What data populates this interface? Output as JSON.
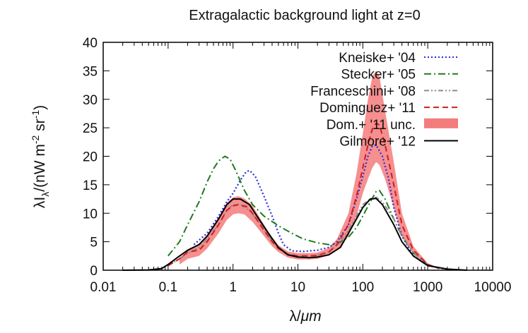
{
  "chart_data": {
    "type": "line",
    "title": "Extragalactic background light at z=0",
    "xlabel": {
      "prefix": "λ/",
      "unit": "μm"
    },
    "ylabel": {
      "base": "λI",
      "sub": "λ",
      "units_open": "/(nW m",
      "exp1": "-2",
      "mid": " sr",
      "exp2": "-1",
      "close": ")"
    },
    "xscale": "log",
    "xlim": [
      0.01,
      10000
    ],
    "ylim": [
      0,
      40
    ],
    "x_ticks": [
      0.01,
      0.1,
      1,
      10,
      100,
      1000,
      10000
    ],
    "x_tick_labels": [
      "0.01",
      "0.1",
      "1",
      "10",
      "100",
      "1000",
      "10000"
    ],
    "y_ticks": [
      0,
      5,
      10,
      15,
      20,
      25,
      30,
      35,
      40
    ],
    "y_tick_labels": [
      "0",
      "5",
      "10",
      "15",
      "20",
      "25",
      "30",
      "35",
      "40"
    ],
    "legend_position": "top-right",
    "series": [
      {
        "name": "Kneiske+ '04",
        "color": "#2b2bdd",
        "style": "dotted",
        "points": [
          [
            0.25,
            4.5
          ],
          [
            0.4,
            6.5
          ],
          [
            0.6,
            9.5
          ],
          [
            0.8,
            12
          ],
          [
            1,
            13.5
          ],
          [
            1.3,
            15.8
          ],
          [
            1.6,
            17.3
          ],
          [
            1.8,
            17.5
          ],
          [
            2.2,
            16.5
          ],
          [
            3,
            13
          ],
          [
            4,
            9.5
          ],
          [
            5,
            6.5
          ],
          [
            6,
            4.5
          ],
          [
            8,
            3.4
          ],
          [
            12,
            3.3
          ],
          [
            20,
            3.5
          ],
          [
            30,
            4
          ],
          [
            40,
            5
          ],
          [
            60,
            8
          ],
          [
            80,
            12.5
          ],
          [
            100,
            16.5
          ],
          [
            120,
            20
          ],
          [
            140,
            21.8
          ],
          [
            160,
            22
          ],
          [
            200,
            20
          ],
          [
            250,
            16
          ],
          [
            300,
            11
          ],
          [
            400,
            6
          ],
          [
            600,
            2.5
          ],
          [
            1000,
            0.8
          ],
          [
            2000,
            0.15
          ]
        ]
      },
      {
        "name": "Stecker+ '05",
        "color": "#1f7a1f",
        "style": "dash-dot",
        "points": [
          [
            0.1,
            2.5
          ],
          [
            0.15,
            5
          ],
          [
            0.2,
            8
          ],
          [
            0.3,
            12
          ],
          [
            0.4,
            15.5
          ],
          [
            0.5,
            17.8
          ],
          [
            0.6,
            19.2
          ],
          [
            0.75,
            20
          ],
          [
            0.9,
            19.5
          ],
          [
            1.1,
            17.5
          ],
          [
            1.5,
            14
          ],
          [
            2,
            11.5
          ],
          [
            3,
            9.5
          ],
          [
            5,
            7.8
          ],
          [
            8,
            6.5
          ],
          [
            12,
            5.5
          ],
          [
            20,
            4.8
          ],
          [
            30,
            4.5
          ],
          [
            40,
            4.6
          ],
          [
            60,
            5.8
          ],
          [
            80,
            7.5
          ],
          [
            100,
            9.5
          ],
          [
            130,
            12
          ],
          [
            160,
            13.8
          ],
          [
            180,
            14
          ],
          [
            220,
            12.5
          ],
          [
            300,
            9
          ],
          [
            400,
            6
          ],
          [
            600,
            3
          ],
          [
            1000,
            1
          ],
          [
            1500,
            0.3
          ]
        ]
      },
      {
        "name": "Franceschini+ '08",
        "color": "#8c8c8c",
        "style": "dash-dot-dot",
        "points": [
          [
            0.1,
            0.8
          ],
          [
            0.15,
            2
          ],
          [
            0.2,
            3
          ],
          [
            0.3,
            4
          ],
          [
            0.4,
            5.5
          ],
          [
            0.6,
            8
          ],
          [
            0.8,
            10.5
          ],
          [
            1,
            11.5
          ],
          [
            1.3,
            11.5
          ],
          [
            1.8,
            10.5
          ],
          [
            2.5,
            8.5
          ],
          [
            3.5,
            6
          ],
          [
            5,
            3.8
          ],
          [
            7,
            2.8
          ],
          [
            10,
            2.5
          ],
          [
            15,
            2.5
          ],
          [
            20,
            2.6
          ],
          [
            30,
            3.2
          ],
          [
            45,
            5
          ],
          [
            60,
            7
          ],
          [
            80,
            9.5
          ],
          [
            100,
            11.5
          ],
          [
            130,
            12.5
          ],
          [
            160,
            12.8
          ],
          [
            200,
            12
          ],
          [
            300,
            9
          ],
          [
            400,
            6
          ],
          [
            600,
            3
          ],
          [
            1000,
            1
          ],
          [
            1500,
            0.3
          ]
        ]
      },
      {
        "name": "Dominguez+ '11",
        "color": "#cc1f1f",
        "style": "dashed",
        "points": [
          [
            0.1,
            0.8
          ],
          [
            0.15,
            2
          ],
          [
            0.2,
            3.2
          ],
          [
            0.3,
            3.5
          ],
          [
            0.4,
            5
          ],
          [
            0.6,
            8
          ],
          [
            0.8,
            10.5
          ],
          [
            1,
            11.3
          ],
          [
            1.2,
            11.5
          ],
          [
            1.6,
            11.2
          ],
          [
            2,
            10
          ],
          [
            3,
            7
          ],
          [
            4,
            5
          ],
          [
            5,
            3.8
          ],
          [
            7,
            2.8
          ],
          [
            10,
            2.5
          ],
          [
            15,
            2.5
          ],
          [
            20,
            2.6
          ],
          [
            30,
            3.2
          ],
          [
            40,
            4.5
          ],
          [
            60,
            8
          ],
          [
            80,
            13
          ],
          [
            100,
            18
          ],
          [
            120,
            22
          ],
          [
            140,
            24.8
          ],
          [
            160,
            25.8
          ],
          [
            180,
            25.5
          ],
          [
            220,
            22
          ],
          [
            300,
            15
          ],
          [
            400,
            8
          ],
          [
            600,
            3.5
          ],
          [
            1000,
            1
          ],
          [
            1500,
            0.3
          ]
        ]
      },
      {
        "name": "Gilmore+ '12",
        "color": "#000000",
        "style": "solid",
        "points": [
          [
            0.02,
            0
          ],
          [
            0.05,
            0.05
          ],
          [
            0.08,
            0.3
          ],
          [
            0.1,
            1
          ],
          [
            0.15,
            2.5
          ],
          [
            0.2,
            3.5
          ],
          [
            0.3,
            4.5
          ],
          [
            0.4,
            6
          ],
          [
            0.6,
            9
          ],
          [
            0.8,
            11.5
          ],
          [
            1,
            12.5
          ],
          [
            1.3,
            12.5
          ],
          [
            1.8,
            11.5
          ],
          [
            2.5,
            9
          ],
          [
            3.5,
            6.5
          ],
          [
            5,
            4
          ],
          [
            7,
            2.7
          ],
          [
            10,
            2.3
          ],
          [
            15,
            2.2
          ],
          [
            20,
            2.3
          ],
          [
            30,
            2.7
          ],
          [
            45,
            4
          ],
          [
            60,
            6.5
          ],
          [
            80,
            9
          ],
          [
            100,
            11
          ],
          [
            130,
            12.5
          ],
          [
            160,
            12.6
          ],
          [
            200,
            11.5
          ],
          [
            300,
            8
          ],
          [
            400,
            5
          ],
          [
            600,
            2.5
          ],
          [
            1000,
            0.8
          ],
          [
            2000,
            0.2
          ],
          [
            4000,
            0
          ]
        ]
      }
    ],
    "band": {
      "name": "Dom.+ '11 unc.",
      "color": "#f47b7b",
      "lower": [
        [
          0.15,
          1
        ],
        [
          0.2,
          2
        ],
        [
          0.3,
          2.5
        ],
        [
          0.4,
          3.8
        ],
        [
          0.6,
          6.5
        ],
        [
          0.8,
          8.8
        ],
        [
          1,
          9.8
        ],
        [
          1.2,
          10
        ],
        [
          1.5,
          9.8
        ],
        [
          2,
          8.5
        ],
        [
          3,
          6
        ],
        [
          4,
          4.2
        ],
        [
          5,
          3.2
        ],
        [
          7,
          2.2
        ],
        [
          10,
          1.9
        ],
        [
          15,
          1.9
        ],
        [
          20,
          2
        ],
        [
          30,
          2.6
        ],
        [
          40,
          3.5
        ],
        [
          60,
          6
        ],
        [
          80,
          9.5
        ],
        [
          100,
          13.5
        ],
        [
          120,
          16
        ],
        [
          140,
          18
        ],
        [
          160,
          19
        ],
        [
          180,
          18.5
        ],
        [
          220,
          16
        ],
        [
          300,
          11
        ],
        [
          400,
          6
        ],
        [
          600,
          2.8
        ],
        [
          1000,
          0.8
        ],
        [
          1500,
          0.2
        ]
      ],
      "upper": [
        [
          0.15,
          2.2
        ],
        [
          0.2,
          3.4
        ],
        [
          0.3,
          4.3
        ],
        [
          0.4,
          6.2
        ],
        [
          0.6,
          9.3
        ],
        [
          0.8,
          11.8
        ],
        [
          1,
          12.8
        ],
        [
          1.2,
          13
        ],
        [
          1.5,
          12.6
        ],
        [
          2,
          11.3
        ],
        [
          3,
          8
        ],
        [
          4,
          5.8
        ],
        [
          5,
          4.4
        ],
        [
          7,
          3.3
        ],
        [
          10,
          3
        ],
        [
          15,
          3
        ],
        [
          20,
          3.1
        ],
        [
          30,
          3.9
        ],
        [
          40,
          5.5
        ],
        [
          60,
          10
        ],
        [
          80,
          17
        ],
        [
          100,
          24
        ],
        [
          120,
          30
        ],
        [
          140,
          34
        ],
        [
          160,
          35
        ],
        [
          180,
          34
        ],
        [
          220,
          28
        ],
        [
          300,
          19
        ],
        [
          400,
          10
        ],
        [
          600,
          4.2
        ],
        [
          1000,
          1.2
        ],
        [
          1500,
          0.4
        ]
      ]
    }
  }
}
